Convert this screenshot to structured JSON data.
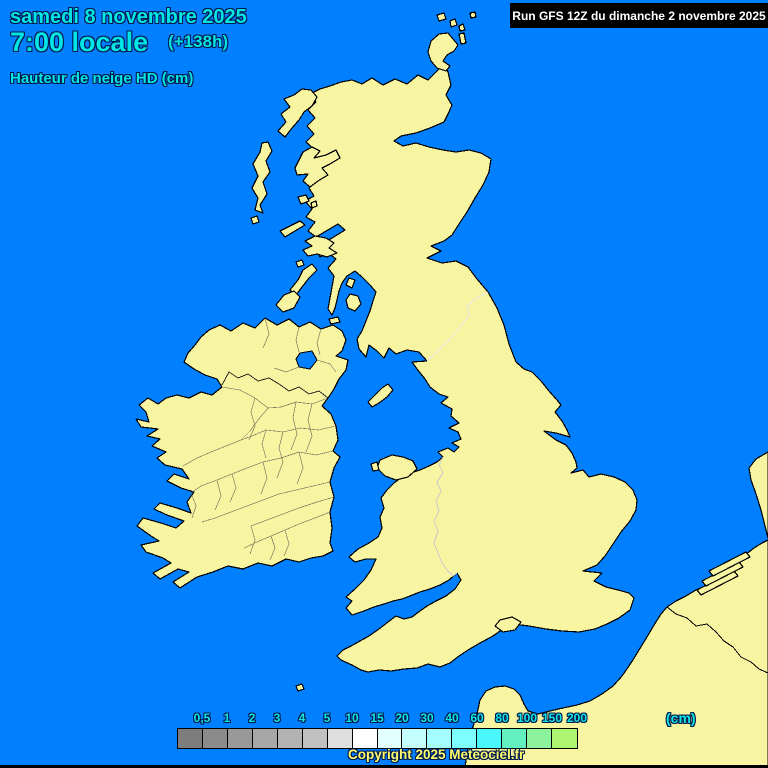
{
  "header": {
    "date": "samedi 8 novembre 2025",
    "time": "7:00 locale",
    "forecast_offset": "(+138h)",
    "parameter": "Hauteur de neige HD (cm)"
  },
  "run_box": {
    "label": "Run GFS 12Z du dimanche 2 novembre 2025"
  },
  "legend": {
    "unit": "(cm)",
    "ticks": [
      "0,5",
      "1",
      "2",
      "3",
      "4",
      "5",
      "10",
      "15",
      "20",
      "30",
      "40",
      "60",
      "80",
      "100",
      "150",
      "200"
    ],
    "colors": [
      "#7d7d7d",
      "#8b8b8b",
      "#999999",
      "#a7a7a7",
      "#b3b3b3",
      "#c1c1c1",
      "#dedede",
      "#ffffff",
      "#e1ffff",
      "#c4feff",
      "#a4feff",
      "#7dfdff",
      "#4af8fc",
      "#63f0c1",
      "#8cf29c",
      "#adf470"
    ]
  },
  "footer": {
    "copyright": "Copyright 2025 Meteociel.fr"
  },
  "map": {
    "sea_color": "#0080ff",
    "land_color": "#f8f5a2",
    "coast_color": "#000000"
  }
}
